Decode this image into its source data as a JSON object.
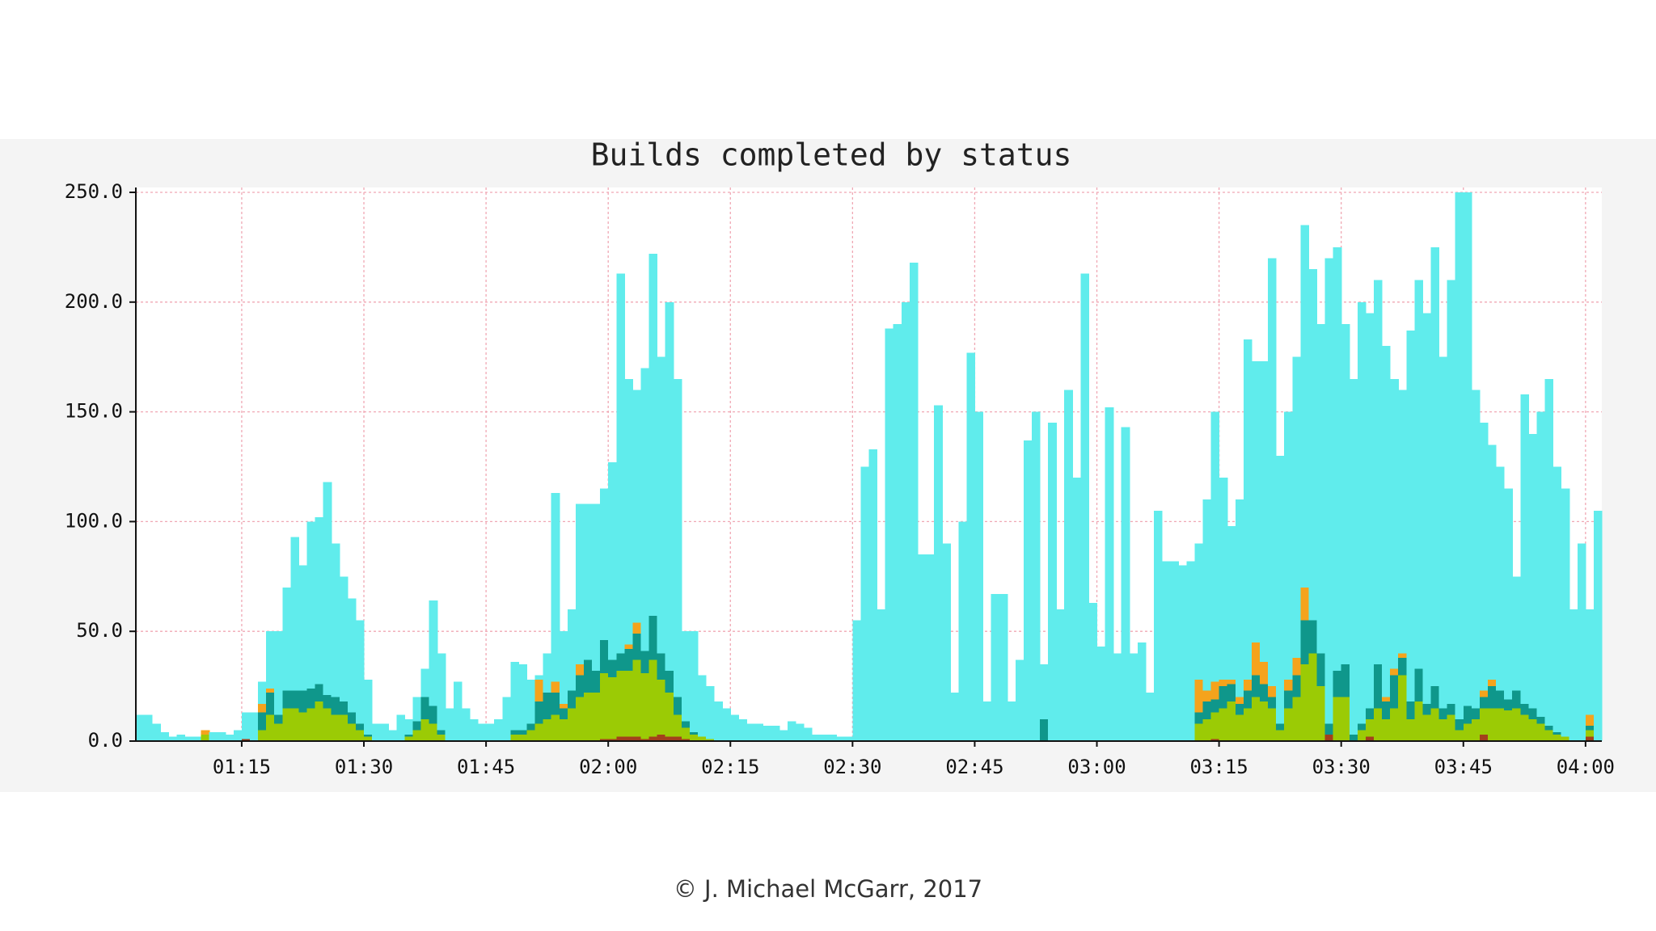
{
  "chart_data": {
    "type": "stacked-bar",
    "title": "Builds completed by status",
    "x": [
      62,
      63,
      64,
      65,
      66,
      67,
      68,
      69,
      70,
      71,
      72,
      73,
      74,
      75,
      76,
      77,
      78,
      79,
      80,
      81,
      82,
      83,
      84,
      85,
      86,
      87,
      88,
      89,
      90,
      91,
      92,
      93,
      94,
      95,
      96,
      97,
      98,
      99,
      100,
      101,
      102,
      103,
      104,
      105,
      106,
      107,
      108,
      109,
      110,
      111,
      112,
      113,
      114,
      115,
      116,
      117,
      118,
      119,
      120,
      121,
      122,
      123,
      124,
      125,
      126,
      127,
      128,
      129,
      130,
      131,
      132,
      133,
      134,
      135,
      136,
      137,
      138,
      139,
      140,
      141,
      142,
      143,
      144,
      145,
      146,
      147,
      148,
      149,
      150,
      151,
      152,
      153,
      154,
      155,
      156,
      157,
      158,
      159,
      160,
      161,
      162,
      163,
      164,
      165,
      166,
      167,
      168,
      169,
      170,
      171,
      172,
      173,
      174,
      175,
      176,
      177,
      178,
      179,
      180,
      181,
      182,
      183,
      184,
      185,
      186,
      187,
      188,
      189,
      190,
      191,
      192,
      193,
      194,
      195,
      196,
      197,
      198,
      199,
      200,
      201,
      202,
      203,
      204,
      205,
      206,
      207,
      208,
      209,
      210,
      211,
      212,
      213,
      214,
      215,
      216,
      217,
      218,
      219,
      220,
      221,
      222,
      223,
      224,
      225,
      226,
      227,
      228,
      229,
      230,
      231,
      232,
      233,
      234,
      235,
      236,
      237,
      238,
      239,
      240,
      241
    ],
    "series": [
      {
        "color": "#a3401c",
        "values": [
          0,
          0,
          0,
          0,
          0,
          0,
          0,
          0,
          0,
          0,
          0,
          0,
          0,
          1,
          0,
          0,
          0,
          0,
          0,
          0,
          0,
          0,
          0,
          0,
          0,
          0,
          0,
          0,
          0,
          0,
          0,
          0,
          0,
          0,
          0,
          0,
          0,
          0,
          0,
          0,
          0,
          0,
          0,
          0,
          0,
          0,
          0,
          0,
          0,
          0,
          0,
          0,
          0,
          0,
          0,
          0,
          0,
          1,
          1,
          2,
          2,
          2,
          1,
          2,
          3,
          2,
          2,
          1,
          0,
          0,
          0,
          0,
          0,
          0,
          0,
          0,
          0,
          0,
          0,
          0,
          0,
          0,
          0,
          0,
          0,
          0,
          0,
          0,
          0,
          0,
          0,
          0,
          0,
          0,
          0,
          0,
          0,
          0,
          0,
          0,
          0,
          0,
          0,
          0,
          0,
          0,
          0,
          0,
          0,
          0,
          0,
          0,
          0,
          0,
          0,
          0,
          0,
          0,
          0,
          0,
          0,
          0,
          0,
          0,
          0,
          0,
          0,
          0,
          0,
          0,
          0,
          0,
          1,
          0,
          0,
          0,
          0,
          0,
          0,
          0,
          0,
          0,
          0,
          0,
          0,
          0,
          3,
          0,
          0,
          0,
          0,
          2,
          0,
          0,
          0,
          0,
          0,
          0,
          0,
          0,
          0,
          0,
          0,
          0,
          0,
          3,
          0,
          0,
          0,
          0,
          0,
          0,
          0,
          0,
          0,
          0,
          0,
          0,
          2,
          0
        ]
      },
      {
        "color": "#9bcb05",
        "values": [
          0,
          0,
          0,
          0,
          0,
          0,
          0,
          0,
          3,
          0,
          0,
          0,
          0,
          0,
          0,
          5,
          12,
          8,
          15,
          15,
          13,
          15,
          18,
          15,
          12,
          12,
          8,
          5,
          2,
          0,
          0,
          0,
          0,
          2,
          5,
          10,
          8,
          3,
          0,
          0,
          0,
          0,
          0,
          0,
          0,
          0,
          3,
          3,
          5,
          8,
          10,
          12,
          10,
          15,
          20,
          22,
          22,
          30,
          28,
          30,
          30,
          35,
          30,
          35,
          25,
          20,
          10,
          5,
          3,
          2,
          1,
          0,
          0,
          0,
          0,
          0,
          0,
          0,
          0,
          0,
          0,
          0,
          0,
          0,
          0,
          0,
          0,
          0,
          0,
          0,
          0,
          0,
          0,
          0,
          0,
          0,
          0,
          0,
          0,
          0,
          0,
          0,
          0,
          0,
          0,
          0,
          0,
          0,
          0,
          0,
          0,
          0,
          0,
          0,
          0,
          0,
          0,
          0,
          0,
          0,
          0,
          0,
          0,
          0,
          0,
          0,
          0,
          0,
          0,
          0,
          8,
          10,
          12,
          15,
          18,
          12,
          15,
          20,
          18,
          15,
          5,
          15,
          20,
          35,
          40,
          25,
          0,
          20,
          20,
          0,
          5,
          8,
          15,
          10,
          15,
          30,
          10,
          18,
          12,
          15,
          10,
          12,
          5,
          8,
          10,
          12,
          15,
          15,
          14,
          15,
          12,
          10,
          8,
          5,
          3,
          2,
          0,
          0,
          3,
          0
        ]
      },
      {
        "color": "#0f978b",
        "values": [
          0,
          0,
          0,
          0,
          0,
          0,
          0,
          0,
          0,
          0,
          0,
          0,
          0,
          0,
          0,
          8,
          10,
          4,
          8,
          8,
          10,
          9,
          8,
          6,
          8,
          6,
          5,
          3,
          1,
          0,
          0,
          0,
          0,
          1,
          4,
          10,
          8,
          2,
          0,
          0,
          0,
          0,
          0,
          0,
          0,
          0,
          2,
          2,
          3,
          10,
          12,
          10,
          5,
          8,
          10,
          15,
          10,
          15,
          8,
          8,
          10,
          12,
          10,
          20,
          12,
          10,
          8,
          3,
          1,
          0,
          0,
          0,
          0,
          0,
          0,
          0,
          0,
          0,
          0,
          0,
          0,
          0,
          0,
          0,
          0,
          0,
          0,
          0,
          0,
          0,
          0,
          0,
          0,
          0,
          0,
          0,
          0,
          0,
          0,
          0,
          0,
          0,
          0,
          0,
          0,
          0,
          0,
          0,
          0,
          0,
          0,
          10,
          0,
          0,
          0,
          0,
          0,
          0,
          0,
          0,
          0,
          0,
          0,
          0,
          0,
          0,
          0,
          0,
          0,
          0,
          5,
          8,
          6,
          10,
          8,
          5,
          8,
          10,
          8,
          5,
          3,
          8,
          10,
          20,
          15,
          15,
          5,
          12,
          15,
          3,
          3,
          5,
          20,
          8,
          15,
          8,
          8,
          15,
          5,
          10,
          5,
          5,
          5,
          8,
          5,
          5,
          10,
          8,
          5,
          8,
          5,
          5,
          3,
          2,
          1,
          0,
          0,
          0,
          2,
          0
        ]
      },
      {
        "color": "#f5a31c",
        "values": [
          0,
          0,
          0,
          0,
          0,
          0,
          0,
          0,
          2,
          0,
          0,
          0,
          0,
          0,
          0,
          4,
          2,
          0,
          0,
          0,
          0,
          0,
          0,
          0,
          0,
          0,
          0,
          0,
          0,
          0,
          0,
          0,
          0,
          0,
          0,
          0,
          0,
          0,
          0,
          0,
          0,
          0,
          0,
          0,
          0,
          0,
          0,
          0,
          0,
          10,
          0,
          5,
          2,
          0,
          5,
          0,
          0,
          0,
          0,
          0,
          2,
          5,
          0,
          0,
          0,
          0,
          0,
          0,
          0,
          0,
          0,
          0,
          0,
          0,
          0,
          0,
          0,
          0,
          0,
          0,
          0,
          0,
          0,
          0,
          0,
          0,
          0,
          0,
          0,
          0,
          0,
          0,
          0,
          0,
          0,
          0,
          0,
          0,
          0,
          0,
          0,
          0,
          0,
          0,
          0,
          0,
          0,
          0,
          0,
          0,
          0,
          0,
          0,
          0,
          0,
          0,
          0,
          0,
          0,
          0,
          0,
          0,
          0,
          0,
          0,
          0,
          0,
          0,
          0,
          0,
          15,
          5,
          8,
          3,
          2,
          3,
          5,
          15,
          10,
          5,
          0,
          5,
          8,
          15,
          0,
          0,
          0,
          0,
          0,
          0,
          0,
          0,
          0,
          2,
          3,
          2,
          0,
          0,
          0,
          0,
          0,
          0,
          0,
          0,
          0,
          3,
          3,
          0,
          0,
          0,
          0,
          0,
          0,
          0,
          0,
          0,
          0,
          0,
          5,
          0
        ]
      },
      {
        "color": "#60ecec",
        "values": [
          12,
          12,
          8,
          4,
          2,
          3,
          2,
          2,
          0,
          4,
          4,
          3,
          5,
          12,
          13,
          10,
          26,
          38,
          47,
          70,
          57,
          76,
          76,
          97,
          70,
          57,
          52,
          47,
          25,
          8,
          8,
          5,
          12,
          7,
          11,
          13,
          48,
          35,
          15,
          27,
          15,
          10,
          8,
          8,
          10,
          20,
          31,
          30,
          20,
          2,
          18,
          86,
          33,
          37,
          73,
          71,
          76,
          69,
          90,
          173,
          121,
          106,
          129,
          165,
          135,
          168,
          145,
          41,
          46,
          28,
          24,
          18,
          15,
          12,
          10,
          8,
          8,
          7,
          7,
          5,
          9,
          8,
          6,
          3,
          3,
          3,
          2,
          2,
          55,
          125,
          133,
          60,
          188,
          190,
          200,
          218,
          85,
          85,
          153,
          90,
          22,
          100,
          177,
          150,
          18,
          67,
          67,
          18,
          37,
          137,
          150,
          25,
          145,
          60,
          160,
          120,
          213,
          63,
          43,
          152,
          40,
          143,
          40,
          45,
          22,
          105,
          82,
          82,
          80,
          82,
          62,
          87,
          123,
          92,
          70,
          90,
          155,
          128,
          137,
          195,
          122,
          122,
          137,
          165,
          160,
          150,
          212,
          193,
          155,
          162,
          192,
          180,
          175,
          160,
          132,
          120,
          169,
          177,
          178,
          200,
          160,
          193,
          240,
          234,
          145,
          122,
          107,
          102,
          96,
          52,
          141,
          125,
          139,
          158,
          121,
          113,
          60,
          90,
          48,
          105
        ]
      }
    ],
    "xlim": [
      62,
      242
    ],
    "xticks": [
      {
        "value": 75,
        "label": "01:15"
      },
      {
        "value": 90,
        "label": "01:30"
      },
      {
        "value": 105,
        "label": "01:45"
      },
      {
        "value": 120,
        "label": "02:00"
      },
      {
        "value": 135,
        "label": "02:15"
      },
      {
        "value": 150,
        "label": "02:30"
      },
      {
        "value": 165,
        "label": "02:45"
      },
      {
        "value": 180,
        "label": "03:00"
      },
      {
        "value": 195,
        "label": "03:15"
      },
      {
        "value": 210,
        "label": "03:30"
      },
      {
        "value": 225,
        "label": "03:45"
      },
      {
        "value": 240,
        "label": "04:00"
      }
    ],
    "ylim": [
      0,
      250
    ],
    "yticks": [
      {
        "value": 0,
        "label": "0.0"
      },
      {
        "value": 50,
        "label": "50.0"
      },
      {
        "value": 100,
        "label": "100.0"
      },
      {
        "value": 150,
        "label": "150.0"
      },
      {
        "value": 200,
        "label": "200.0"
      },
      {
        "value": 250,
        "label": "250.0"
      }
    ],
    "grid": true
  },
  "credit": "© J. Michael McGarr, 2017"
}
